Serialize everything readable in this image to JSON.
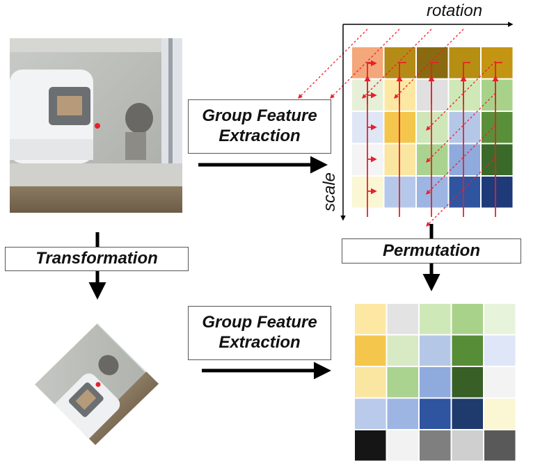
{
  "labels": {
    "group_feature_extraction_top": [
      "Group Feature",
      "Extraction"
    ],
    "group_feature_extraction_bottom": [
      "Group Feature",
      "Extraction"
    ],
    "transformation": "Transformation",
    "permutation": "Permutation",
    "rotation_axis": "rotation",
    "scale_axis": "scale"
  },
  "colors": {
    "arrow": "#000000",
    "permutation_path": "#e8202a",
    "keypoint_marker": "#e8202a"
  },
  "top_grid_colors": [
    [
      "#f4a77a",
      "#b58b17",
      "#8a6a10",
      "#b58e12",
      "#c49512"
    ],
    [
      "#e6efd8",
      "#fde8a3",
      "#e0e0e0",
      "#cfe8b7",
      "#a8d28a"
    ],
    [
      "#dfe6f5",
      "#f4c64c",
      "#cfe6b8",
      "#b4c7e7",
      "#5a8f3a"
    ],
    [
      "#f4f4f4",
      "#fae6a0",
      "#a9d38f",
      "#8faadc",
      "#3a6a2a"
    ],
    [
      "#fbf6d4",
      "#b6c8ea",
      "#9db5e3",
      "#2f54a0",
      "#1f3a78"
    ]
  ],
  "bottom_grid_colors": [
    [
      "#fde8a3",
      "#e3e3e3",
      "#cfe8b7",
      "#a8d28a",
      "#e8f3dc"
    ],
    [
      "#f4c64c",
      "#d8eac4",
      "#b4c7e7",
      "#568d36",
      "#dfe6f7"
    ],
    [
      "#fae6a0",
      "#a9d38f",
      "#8faadc",
      "#375f26",
      "#f3f3f3"
    ],
    [
      "#b9caeb",
      "#9db5e3",
      "#2f54a0",
      "#1f3a6c",
      "#fbf6d4"
    ],
    [
      "#151515",
      "#f2f2f2",
      "#7f7f7f",
      "#cfcfcf",
      "#595959"
    ]
  ]
}
